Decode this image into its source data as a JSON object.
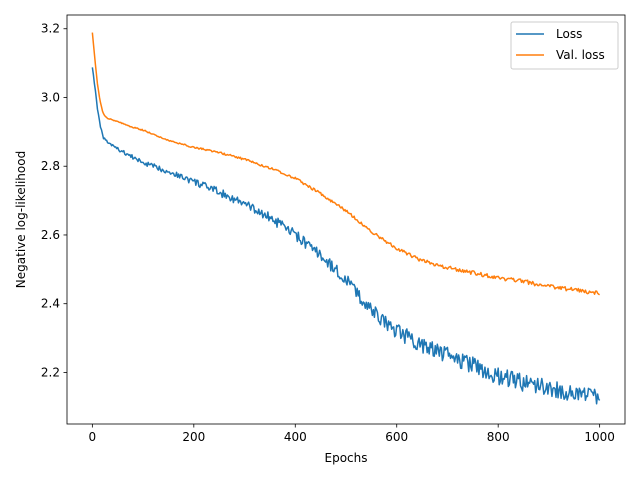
{
  "chart_data": {
    "type": "line",
    "title": "",
    "xlabel": "Epochs",
    "ylabel": "Negative log-likelihood",
    "xlim": [
      -50,
      1050
    ],
    "ylim": [
      2.05,
      3.24
    ],
    "xticks": [
      0,
      200,
      400,
      600,
      800,
      1000
    ],
    "yticks": [
      2.2,
      2.4,
      2.6,
      2.8,
      3.0,
      3.2
    ],
    "xtick_labels": [
      "0",
      "200",
      "400",
      "600",
      "800",
      "1000"
    ],
    "ytick_labels": [
      "2.2",
      "2.4",
      "2.6",
      "2.8",
      "3.0",
      "3.2"
    ],
    "grid": false,
    "legend_position": "top-right",
    "series": [
      {
        "name": "Loss",
        "color": "#1f77b4",
        "x": [
          0,
          5,
          10,
          15,
          20,
          25,
          30,
          40,
          50,
          75,
          100,
          150,
          200,
          250,
          300,
          350,
          400,
          450,
          500,
          550,
          600,
          650,
          700,
          750,
          800,
          850,
          900,
          950,
          1000
        ],
        "y": [
          3.09,
          3.03,
          2.97,
          2.92,
          2.89,
          2.875,
          2.87,
          2.86,
          2.85,
          2.83,
          2.81,
          2.785,
          2.755,
          2.725,
          2.69,
          2.65,
          2.6,
          2.54,
          2.47,
          2.38,
          2.32,
          2.28,
          2.25,
          2.22,
          2.19,
          2.17,
          2.155,
          2.14,
          2.13
        ]
      },
      {
        "name": "Val. loss",
        "color": "#ff7f0e",
        "x": [
          0,
          5,
          10,
          15,
          20,
          25,
          30,
          40,
          50,
          75,
          100,
          150,
          200,
          250,
          300,
          350,
          400,
          450,
          500,
          550,
          600,
          650,
          700,
          750,
          800,
          850,
          900,
          950,
          1000
        ],
        "y": [
          3.19,
          3.11,
          3.04,
          2.99,
          2.96,
          2.945,
          2.94,
          2.935,
          2.93,
          2.915,
          2.905,
          2.875,
          2.855,
          2.84,
          2.82,
          2.795,
          2.765,
          2.72,
          2.67,
          2.61,
          2.56,
          2.525,
          2.505,
          2.49,
          2.475,
          2.465,
          2.45,
          2.44,
          2.43
        ]
      }
    ]
  }
}
